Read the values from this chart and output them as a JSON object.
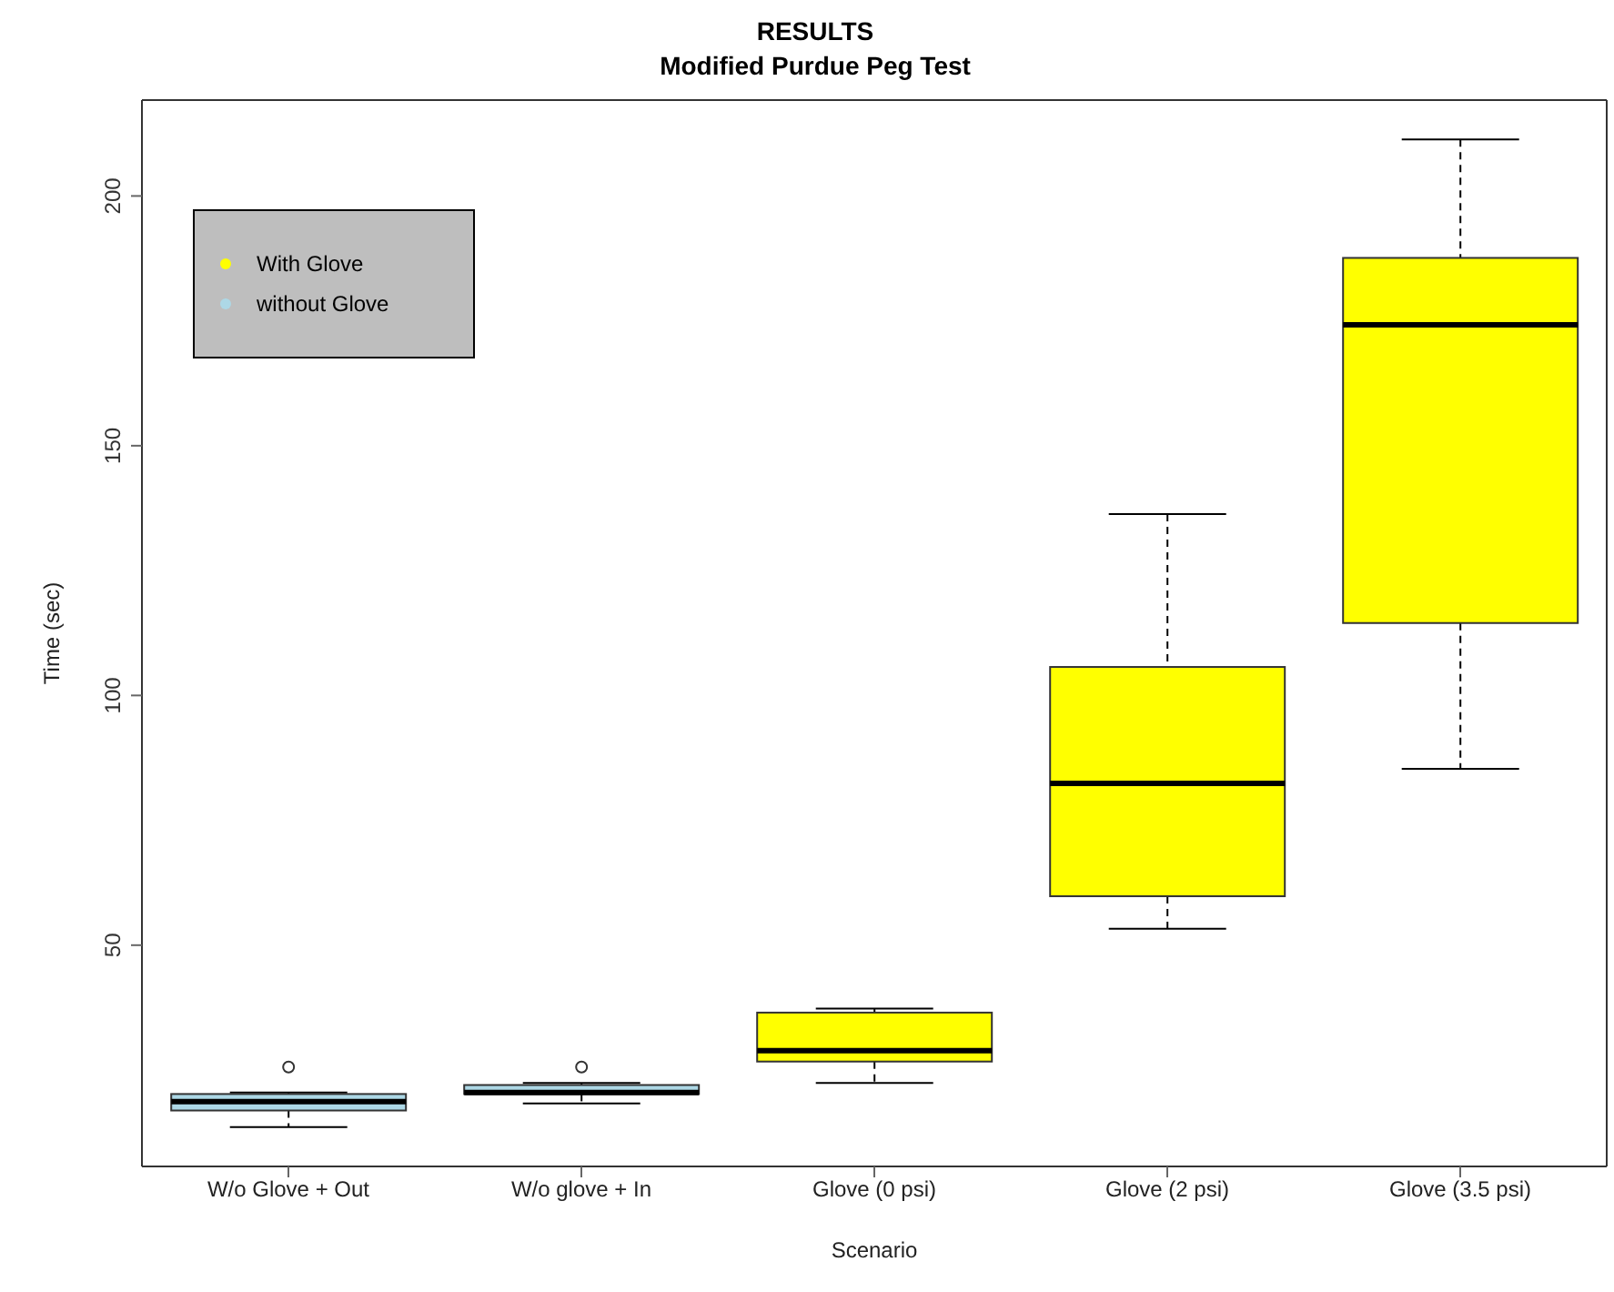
{
  "chart_data": {
    "type": "box",
    "title": "RESULTS",
    "subtitle": "Modified Purdue Peg Test",
    "xlabel": "Scenario",
    "ylabel": "Time (sec)",
    "categories": [
      "W/o Glove + Out",
      "W/o glove + In",
      "Glove (0 psi)",
      "Glove (2 psi)",
      "Glove (3.5 psi)"
    ],
    "series": [
      {
        "name": "With Glove",
        "color": "#ffff00",
        "boxes": [
          null,
          null,
          {
            "low": 22.4,
            "q1": 26.7,
            "median": 28.9,
            "q3": 36.5,
            "high": 37.3
          },
          {
            "low": 53.3,
            "q1": 59.8,
            "median": 82.4,
            "q3": 105.7,
            "high": 136.3
          },
          {
            "low": 85.3,
            "q1": 114.5,
            "median": 174.2,
            "q3": 187.6,
            "high": 211.3
          }
        ]
      },
      {
        "name": "without Glove",
        "color": "#add8e6",
        "boxes": [
          {
            "low": 13.6,
            "q1": 16.9,
            "median": 18.7,
            "q3": 20.2,
            "high": 20.5,
            "outliers": [
              25.6
            ]
          },
          {
            "low": 18.3,
            "q1": 20.2,
            "median": 20.5,
            "q3": 22,
            "high": 22.4,
            "outliers": [
              25.6
            ]
          },
          null,
          null,
          null
        ]
      }
    ],
    "ylim": [
      5.7,
      219.2
    ],
    "yticks": [
      50,
      100,
      150,
      200
    ],
    "grid": false,
    "legend": "top left"
  }
}
